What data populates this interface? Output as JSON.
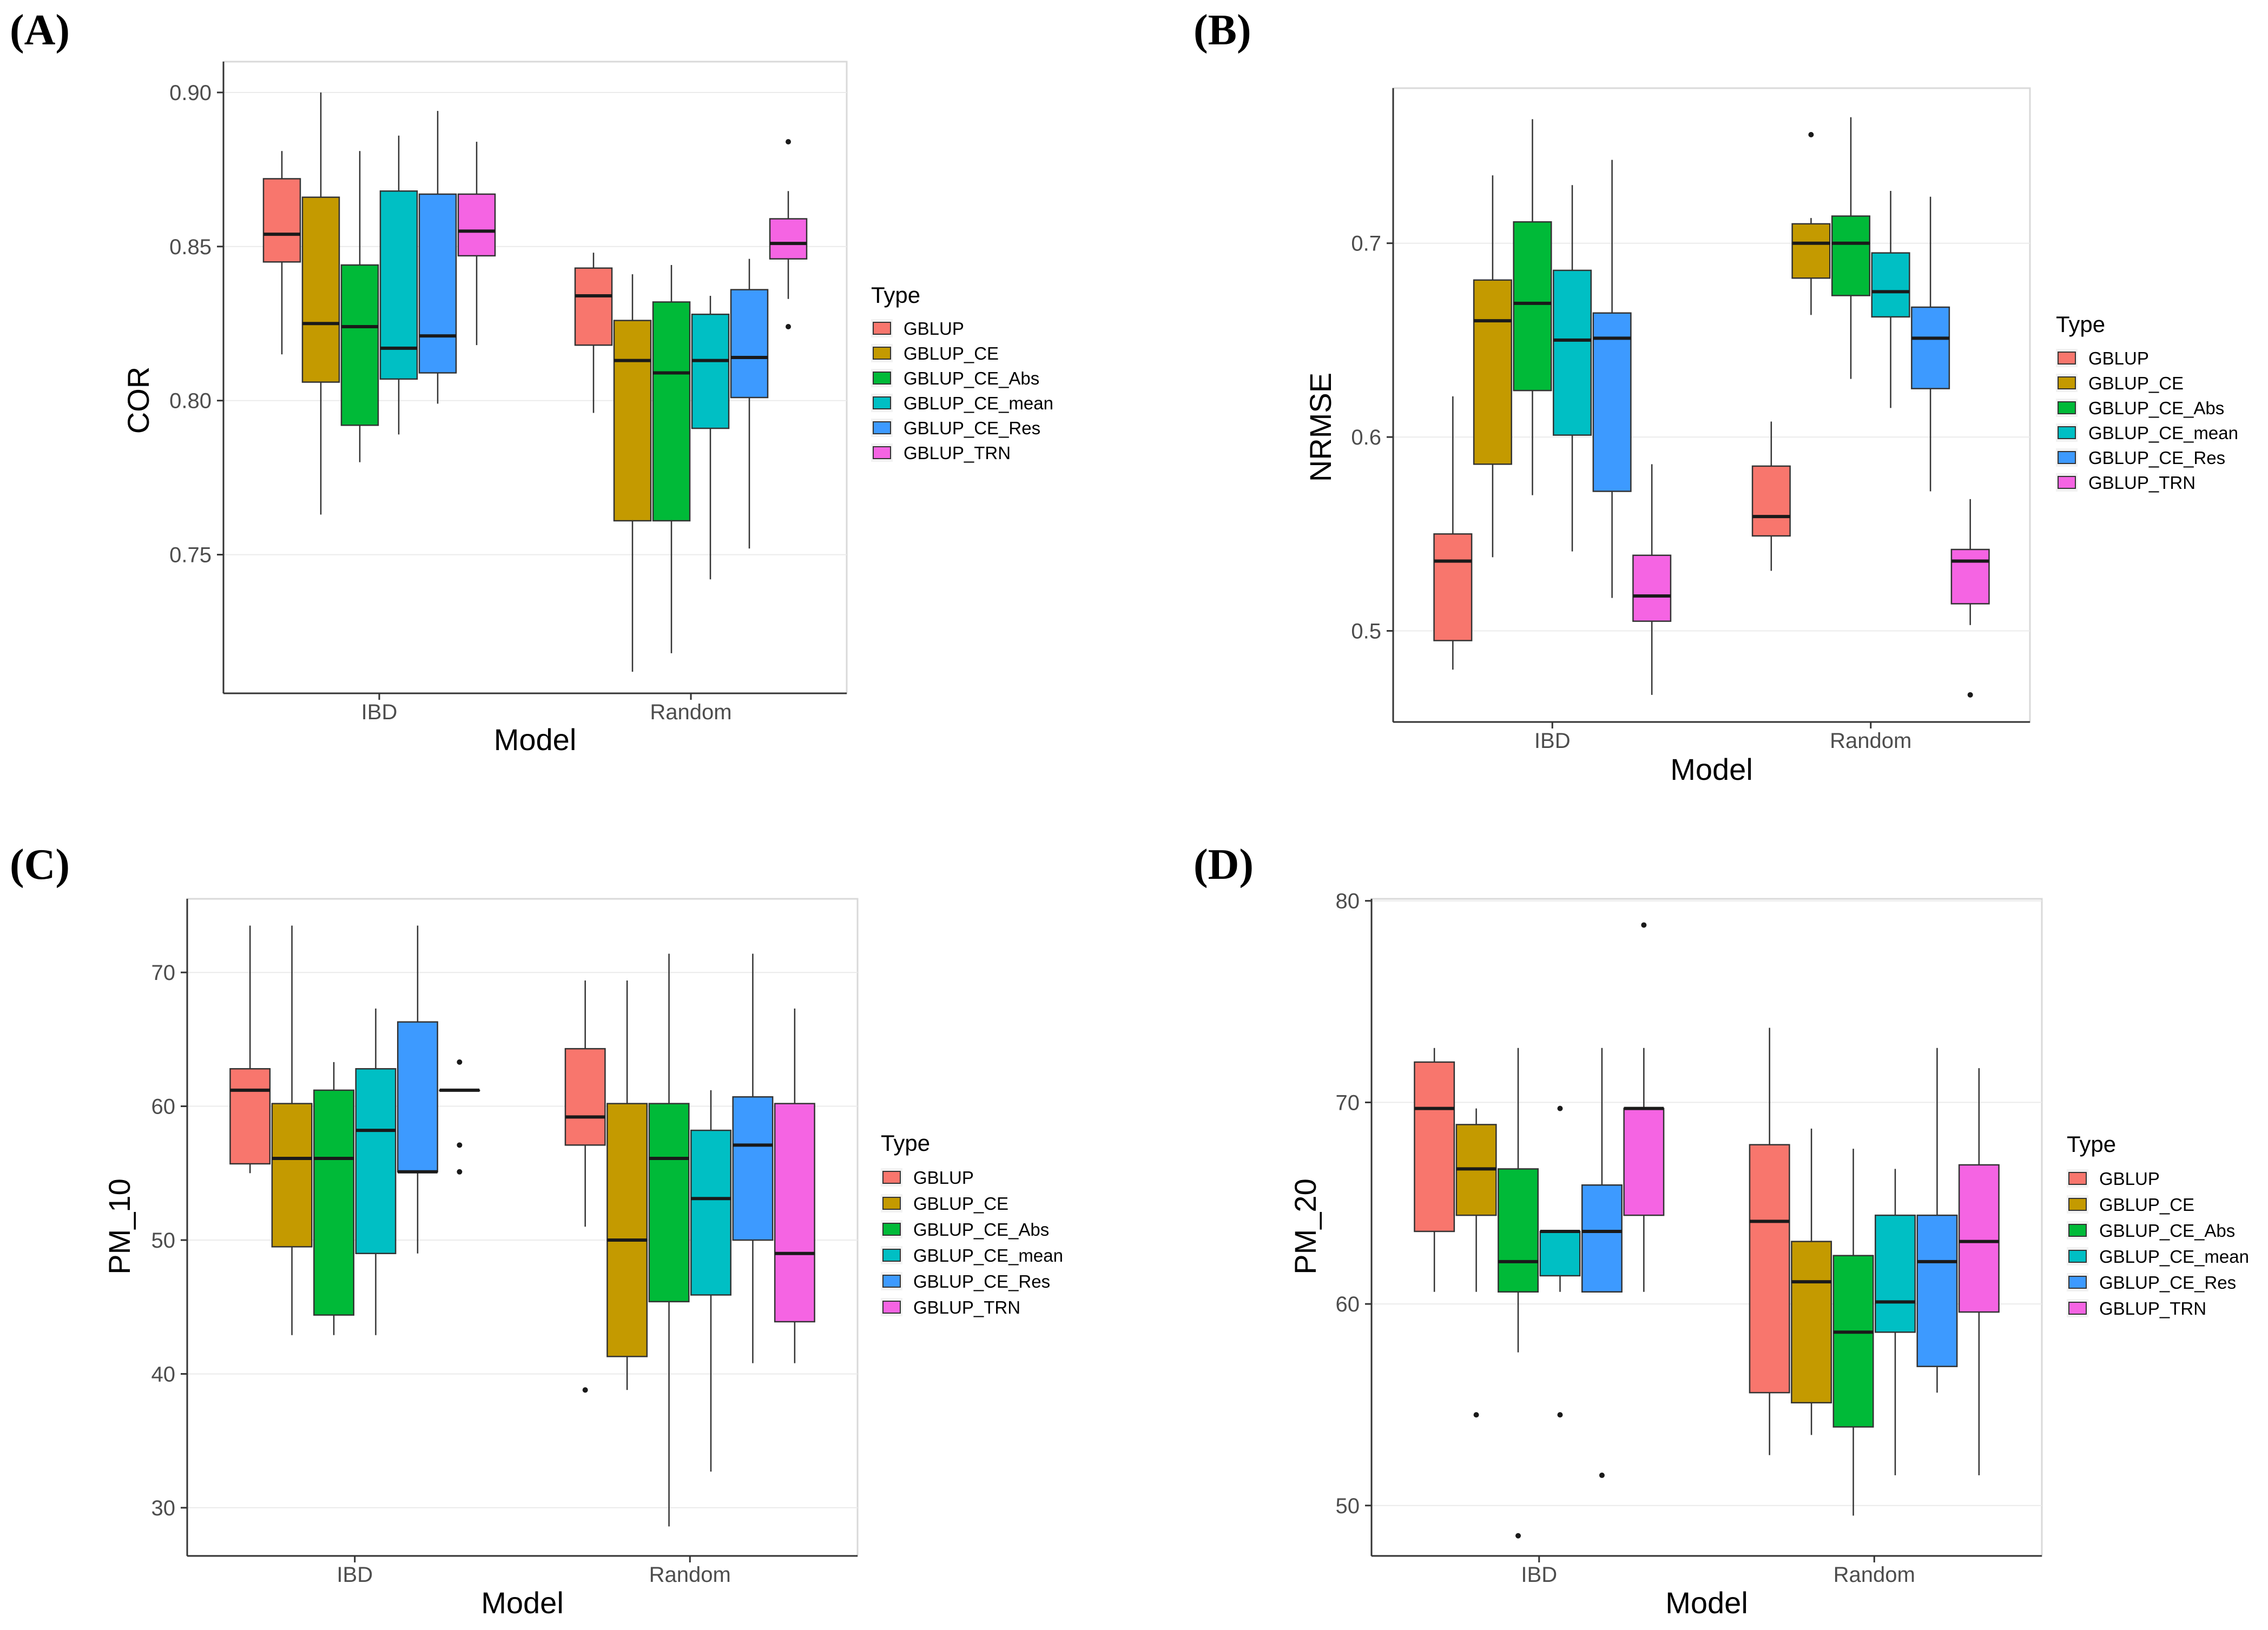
{
  "figure": {
    "panel_letters": [
      "(A)",
      "(B)",
      "(C)",
      "(D)"
    ]
  },
  "colors": {
    "GBLUP": "#F8766D",
    "GBLUP_CE": "#C49A00",
    "GBLUP_CE_Abs": "#00BA38",
    "GBLUP_CE_mean": "#00BFC4",
    "GBLUP_CE_Res": "#3D9AFF",
    "GBLUP_TRN": "#F564E3"
  },
  "chart_data": [
    {
      "type": "boxplot",
      "panel": "(A)",
      "xlabel": "Model",
      "ylabel": "COR",
      "categories": [
        "IBD",
        "Random"
      ],
      "ylim": [
        0.705,
        0.91
      ],
      "yticks": [
        0.75,
        0.8,
        0.85,
        0.9
      ],
      "ytick_labels": [
        "0.75",
        "0.80",
        "0.85",
        "0.90"
      ],
      "legend_title": "Type",
      "series": [
        {
          "name": "GBLUP",
          "boxes": [
            {
              "category": "IBD",
              "min": 0.815,
              "q1": 0.845,
              "median": 0.854,
              "q3": 0.872,
              "max": 0.881,
              "outliers": []
            },
            {
              "category": "Random",
              "min": 0.796,
              "q1": 0.818,
              "median": 0.834,
              "q3": 0.843,
              "max": 0.848,
              "outliers": []
            }
          ]
        },
        {
          "name": "GBLUP_CE",
          "boxes": [
            {
              "category": "IBD",
              "min": 0.763,
              "q1": 0.806,
              "median": 0.825,
              "q3": 0.866,
              "max": 0.9,
              "outliers": []
            },
            {
              "category": "Random",
              "min": 0.712,
              "q1": 0.761,
              "median": 0.813,
              "q3": 0.826,
              "max": 0.841,
              "outliers": []
            }
          ]
        },
        {
          "name": "GBLUP_CE_Abs",
          "boxes": [
            {
              "category": "IBD",
              "min": 0.78,
              "q1": 0.792,
              "median": 0.824,
              "q3": 0.844,
              "max": 0.881,
              "outliers": []
            },
            {
              "category": "Random",
              "min": 0.718,
              "q1": 0.761,
              "median": 0.809,
              "q3": 0.832,
              "max": 0.844,
              "outliers": []
            }
          ]
        },
        {
          "name": "GBLUP_CE_mean",
          "boxes": [
            {
              "category": "IBD",
              "min": 0.789,
              "q1": 0.807,
              "median": 0.817,
              "q3": 0.868,
              "max": 0.886,
              "outliers": []
            },
            {
              "category": "Random",
              "min": 0.742,
              "q1": 0.791,
              "median": 0.813,
              "q3": 0.828,
              "max": 0.834,
              "outliers": []
            }
          ]
        },
        {
          "name": "GBLUP_CE_Res",
          "boxes": [
            {
              "category": "IBD",
              "min": 0.799,
              "q1": 0.809,
              "median": 0.821,
              "q3": 0.867,
              "max": 0.894,
              "outliers": []
            },
            {
              "category": "Random",
              "min": 0.752,
              "q1": 0.801,
              "median": 0.814,
              "q3": 0.836,
              "max": 0.846,
              "outliers": []
            }
          ]
        },
        {
          "name": "GBLUP_TRN",
          "boxes": [
            {
              "category": "IBD",
              "min": 0.818,
              "q1": 0.847,
              "median": 0.855,
              "q3": 0.867,
              "max": 0.884,
              "outliers": []
            },
            {
              "category": "Random",
              "min": 0.833,
              "q1": 0.846,
              "median": 0.851,
              "q3": 0.859,
              "max": 0.868,
              "outliers": [
                0.884,
                0.824
              ]
            }
          ]
        }
      ]
    },
    {
      "type": "boxplot",
      "panel": "(B)",
      "xlabel": "Model",
      "ylabel": "NRMSE",
      "categories": [
        "IBD",
        "Random"
      ],
      "ylim": [
        0.453,
        0.78
      ],
      "yticks": [
        0.5,
        0.6,
        0.7
      ],
      "ytick_labels": [
        "0.5",
        "0.6",
        "0.7"
      ],
      "legend_title": "Type",
      "series": [
        {
          "name": "GBLUP",
          "boxes": [
            {
              "category": "IBD",
              "min": 0.48,
              "q1": 0.495,
              "median": 0.536,
              "q3": 0.55,
              "max": 0.621,
              "outliers": []
            },
            {
              "category": "Random",
              "min": 0.531,
              "q1": 0.549,
              "median": 0.559,
              "q3": 0.585,
              "max": 0.608,
              "outliers": []
            }
          ]
        },
        {
          "name": "GBLUP_CE",
          "boxes": [
            {
              "category": "IBD",
              "min": 0.538,
              "q1": 0.586,
              "median": 0.66,
              "q3": 0.681,
              "max": 0.735,
              "outliers": []
            },
            {
              "category": "Random",
              "min": 0.663,
              "q1": 0.682,
              "median": 0.7,
              "q3": 0.71,
              "max": 0.713,
              "outliers": [
                0.756
              ]
            }
          ]
        },
        {
          "name": "GBLUP_CE_Abs",
          "boxes": [
            {
              "category": "IBD",
              "min": 0.57,
              "q1": 0.624,
              "median": 0.669,
              "q3": 0.711,
              "max": 0.764,
              "outliers": []
            },
            {
              "category": "Random",
              "min": 0.63,
              "q1": 0.673,
              "median": 0.7,
              "q3": 0.714,
              "max": 0.765,
              "outliers": []
            }
          ]
        },
        {
          "name": "GBLUP_CE_mean",
          "boxes": [
            {
              "category": "IBD",
              "min": 0.541,
              "q1": 0.601,
              "median": 0.65,
              "q3": 0.686,
              "max": 0.73,
              "outliers": []
            },
            {
              "category": "Random",
              "min": 0.615,
              "q1": 0.662,
              "median": 0.675,
              "q3": 0.695,
              "max": 0.727,
              "outliers": []
            }
          ]
        },
        {
          "name": "GBLUP_CE_Res",
          "boxes": [
            {
              "category": "IBD",
              "min": 0.517,
              "q1": 0.572,
              "median": 0.651,
              "q3": 0.664,
              "max": 0.743,
              "outliers": []
            },
            {
              "category": "Random",
              "min": 0.572,
              "q1": 0.625,
              "median": 0.651,
              "q3": 0.667,
              "max": 0.724,
              "outliers": []
            }
          ]
        },
        {
          "name": "GBLUP_TRN",
          "boxes": [
            {
              "category": "IBD",
              "min": 0.467,
              "q1": 0.505,
              "median": 0.518,
              "q3": 0.539,
              "max": 0.586,
              "outliers": []
            },
            {
              "category": "Random",
              "min": 0.503,
              "q1": 0.514,
              "median": 0.536,
              "q3": 0.542,
              "max": 0.568,
              "outliers": [
                0.467
              ]
            }
          ]
        }
      ]
    },
    {
      "type": "boxplot",
      "panel": "(C)",
      "xlabel": "Model",
      "ylabel": "PM_10",
      "categories": [
        "IBD",
        "Random"
      ],
      "ylim": [
        26.4,
        75.5
      ],
      "yticks": [
        30,
        40,
        50,
        60,
        70
      ],
      "ytick_labels": [
        "30",
        "40",
        "50",
        "60",
        "70"
      ],
      "legend_title": "Type",
      "series": [
        {
          "name": "GBLUP",
          "boxes": [
            {
              "category": "IBD",
              "min": 55.0,
              "q1": 55.7,
              "median": 61.2,
              "q3": 62.8,
              "max": 73.5,
              "outliers": []
            },
            {
              "category": "Random",
              "min": 51.0,
              "q1": 57.1,
              "median": 59.2,
              "q3": 64.3,
              "max": 69.4,
              "outliers": [
                38.8
              ]
            }
          ]
        },
        {
          "name": "GBLUP_CE",
          "boxes": [
            {
              "category": "IBD",
              "min": 42.9,
              "q1": 49.5,
              "median": 56.1,
              "q3": 60.2,
              "max": 73.5,
              "outliers": []
            },
            {
              "category": "Random",
              "min": 38.8,
              "q1": 41.3,
              "median": 50.0,
              "q3": 60.2,
              "max": 69.4,
              "outliers": []
            }
          ]
        },
        {
          "name": "GBLUP_CE_Abs",
          "boxes": [
            {
              "category": "IBD",
              "min": 42.9,
              "q1": 44.4,
              "median": 56.1,
              "q3": 61.2,
              "max": 63.3,
              "outliers": []
            },
            {
              "category": "Random",
              "min": 28.6,
              "q1": 45.4,
              "median": 56.1,
              "q3": 60.2,
              "max": 71.4,
              "outliers": []
            }
          ]
        },
        {
          "name": "GBLUP_CE_mean",
          "boxes": [
            {
              "category": "IBD",
              "min": 42.9,
              "q1": 49.0,
              "median": 58.2,
              "q3": 62.8,
              "max": 67.3,
              "outliers": []
            },
            {
              "category": "Random",
              "min": 32.7,
              "q1": 45.9,
              "median": 53.1,
              "q3": 58.2,
              "max": 61.2,
              "outliers": []
            }
          ]
        },
        {
          "name": "GBLUP_CE_Res",
          "boxes": [
            {
              "category": "IBD",
              "min": 49.0,
              "q1": 55.1,
              "median": 55.1,
              "q3": 66.3,
              "max": 73.5,
              "outliers": []
            },
            {
              "category": "Random",
              "min": 40.8,
              "q1": 50.0,
              "median": 57.1,
              "q3": 60.7,
              "max": 71.4,
              "outliers": []
            }
          ]
        },
        {
          "name": "GBLUP_TRN",
          "boxes": [
            {
              "category": "IBD",
              "min": 61.2,
              "q1": 61.2,
              "median": 61.2,
              "q3": 61.2,
              "max": 61.2,
              "outliers": [
                63.3,
                57.1,
                55.1
              ]
            },
            {
              "category": "Random",
              "min": 40.8,
              "q1": 43.9,
              "median": 49.0,
              "q3": 60.2,
              "max": 67.3,
              "outliers": []
            }
          ]
        }
      ]
    },
    {
      "type": "boxplot",
      "panel": "(D)",
      "xlabel": "Model",
      "ylabel": "PM_20",
      "categories": [
        "IBD",
        "Random"
      ],
      "ylim": [
        47.5,
        80.1
      ],
      "yticks": [
        50,
        60,
        70,
        80
      ],
      "ytick_labels": [
        "50",
        "60",
        "70",
        "80"
      ],
      "legend_title": "Type",
      "series": [
        {
          "name": "GBLUP",
          "boxes": [
            {
              "category": "IBD",
              "min": 60.6,
              "q1": 63.6,
              "median": 69.7,
              "q3": 72.0,
              "max": 72.7,
              "outliers": []
            },
            {
              "category": "Random",
              "min": 52.5,
              "q1": 55.6,
              "median": 64.1,
              "q3": 67.9,
              "max": 73.7,
              "outliers": []
            }
          ]
        },
        {
          "name": "GBLUP_CE",
          "boxes": [
            {
              "category": "IBD",
              "min": 60.6,
              "q1": 64.4,
              "median": 66.7,
              "q3": 68.9,
              "max": 69.7,
              "outliers": [
                54.5
              ]
            },
            {
              "category": "Random",
              "min": 53.5,
              "q1": 55.1,
              "median": 61.1,
              "q3": 63.1,
              "max": 68.7,
              "outliers": []
            }
          ]
        },
        {
          "name": "GBLUP_CE_Abs",
          "boxes": [
            {
              "category": "IBD",
              "min": 57.6,
              "q1": 60.6,
              "median": 62.1,
              "q3": 66.7,
              "max": 72.7,
              "outliers": [
                48.5
              ]
            },
            {
              "category": "Random",
              "min": 49.5,
              "q1": 53.9,
              "median": 58.6,
              "q3": 62.4,
              "max": 67.7,
              "outliers": []
            }
          ]
        },
        {
          "name": "GBLUP_CE_mean",
          "boxes": [
            {
              "category": "IBD",
              "min": 60.6,
              "q1": 61.4,
              "median": 63.6,
              "q3": 63.6,
              "max": 63.6,
              "outliers": [
                69.7,
                54.5
              ]
            },
            {
              "category": "Random",
              "min": 51.5,
              "q1": 58.6,
              "median": 60.1,
              "q3": 64.4,
              "max": 66.7,
              "outliers": []
            }
          ]
        },
        {
          "name": "GBLUP_CE_Res",
          "boxes": [
            {
              "category": "IBD",
              "min": 60.6,
              "q1": 60.6,
              "median": 63.6,
              "q3": 65.9,
              "max": 72.7,
              "outliers": [
                51.5
              ]
            },
            {
              "category": "Random",
              "min": 55.6,
              "q1": 56.9,
              "median": 62.1,
              "q3": 64.4,
              "max": 72.7,
              "outliers": []
            }
          ]
        },
        {
          "name": "GBLUP_TRN",
          "boxes": [
            {
              "category": "IBD",
              "min": 60.6,
              "q1": 64.4,
              "median": 69.7,
              "q3": 69.7,
              "max": 72.7,
              "outliers": [
                78.8
              ]
            },
            {
              "category": "Random",
              "min": 51.5,
              "q1": 59.6,
              "median": 63.1,
              "q3": 66.9,
              "max": 71.7,
              "outliers": []
            }
          ]
        }
      ]
    }
  ]
}
